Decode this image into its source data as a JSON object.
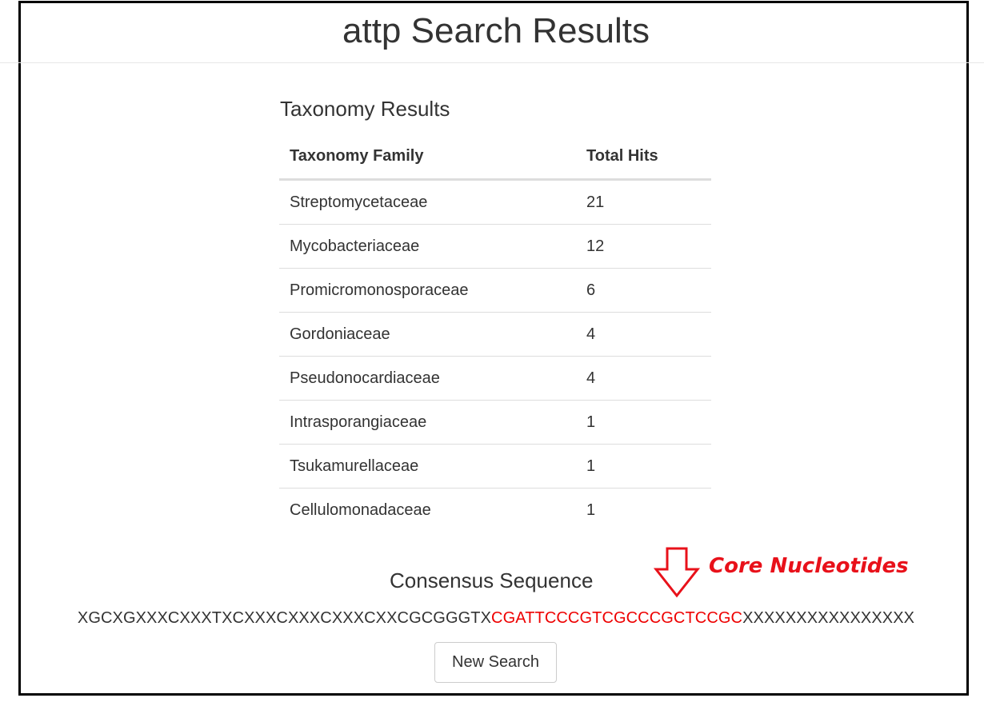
{
  "header": {
    "title": "attp Search Results"
  },
  "taxonomy": {
    "title": "Taxonomy Results",
    "columns": [
      "Taxonomy Family",
      "Total Hits"
    ],
    "rows": [
      {
        "family": "Streptomycetaceae",
        "hits": "21"
      },
      {
        "family": "Mycobacteriaceae",
        "hits": "12"
      },
      {
        "family": "Promicromonosporaceae",
        "hits": "6"
      },
      {
        "family": "Gordoniaceae",
        "hits": "4"
      },
      {
        "family": "Pseudonocardiaceae",
        "hits": "4"
      },
      {
        "family": "Intrasporangiaceae",
        "hits": "1"
      },
      {
        "family": "Tsukamurellaceae",
        "hits": "1"
      },
      {
        "family": "Cellulomonadaceae",
        "hits": "1"
      }
    ]
  },
  "consensus": {
    "title": "Consensus Sequence",
    "prefix": "XGCXGXXXCXXXTXCXXXCXXXCXXXCXXCGCGGGTX",
    "core": "CGATTCCCGTCGCCCGCTCCGC",
    "suffix": "XXXXXXXXXXXXXXXX"
  },
  "annotation": {
    "label": "Core Nucleotides",
    "icon": "down-arrow-icon",
    "color": "#e8111a"
  },
  "actions": {
    "new_search_label": "New Search"
  },
  "colors": {
    "core_sequence": "#ee0000",
    "border": "#000000"
  }
}
